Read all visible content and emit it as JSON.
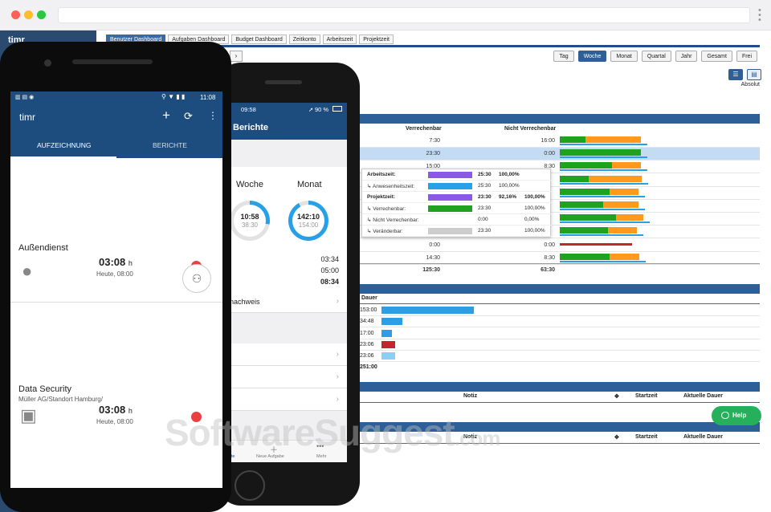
{
  "browser": {
    "url": ""
  },
  "web": {
    "logo": "timr",
    "tabs": [
      "Benutzer Dashboard",
      "Aufgaben Dashboard",
      "Budget Dashboard",
      "Zeitkonto",
      "Arbeitszeit",
      "Projektzeit"
    ],
    "nav_arrow": "›",
    "periods": [
      "Tag",
      "Woche",
      "Monat",
      "Quartal",
      "Jahr",
      "Gesamt",
      "Frei"
    ],
    "active_period": "Woche",
    "view_label": "Absolut",
    "table1": {
      "col_billable": "Verrechenbar",
      "col_nonbillable": "Nicht Verrechenbar",
      "rows": [
        {
          "billable": "7:30",
          "nonbillable": "16:00"
        },
        {
          "billable": "23:30",
          "nonbillable": "0:00"
        },
        {
          "billable": "15:00",
          "nonbillable": "8:30"
        },
        {
          "billable": "",
          "nonbillable": ""
        },
        {
          "billable": "",
          "nonbillable": ""
        },
        {
          "billable": "",
          "nonbillable": ""
        },
        {
          "billable": "",
          "nonbillable": ""
        },
        {
          "billable": "",
          "nonbillable": ""
        },
        {
          "billable": "0:00",
          "nonbillable": "0:00"
        },
        {
          "billable": "14:30",
          "nonbillable": "8:30"
        }
      ],
      "total_billable": "125:30",
      "total_nonbillable": "63:30"
    },
    "popup": [
      {
        "label": "Arbeitszeit:",
        "v1": "25:30",
        "v2": "100,00%",
        "v3": "",
        "bold": true
      },
      {
        "label": "↳ Anwesenheitszeit:",
        "v1": "25:30",
        "v2": "100,00%",
        "v3": "",
        "bold": false
      },
      {
        "label": "Projektzeit:",
        "v1": "23:30",
        "v2": "92,16%",
        "v3": "100,00%",
        "bold": true
      },
      {
        "label": "↳ Verrechenbar:",
        "v1": "23:30",
        "v2": "",
        "v3": "100,00%",
        "bold": false
      },
      {
        "label": "↳ Nicht Verrechenbar:",
        "v1": "0:00",
        "v2": "",
        "v3": "0,00%",
        "bold": false
      },
      {
        "label": "↳ Veränderbar:",
        "v1": "23:30",
        "v2": "",
        "v3": "100,00%",
        "bold": false
      }
    ],
    "table2": {
      "col_duration": "Dauer",
      "rows": [
        {
          "value": "153:00",
          "fraction": 1.0,
          "color": "#2a9fe6"
        },
        {
          "value": "34:48",
          "fraction": 0.23,
          "color": "#2a9fe6"
        },
        {
          "value": "17:00",
          "fraction": 0.11,
          "color": "#2a9fe6"
        },
        {
          "value": "23:06",
          "fraction": 0.15,
          "color": "#c0282d"
        },
        {
          "value": "23:06",
          "fraction": 0.15,
          "color": "#8ccff5"
        }
      ],
      "total": "251:00"
    },
    "table3": {
      "col_note": "Notiz",
      "col_start": "Startzeit",
      "col_duration": "Aktuelle Dauer"
    },
    "table4": {
      "col_note": "Notiz",
      "col_start": "Startzeit",
      "col_duration": "Aktuelle Dauer"
    },
    "help_label": "Help",
    "watermark": "SoftwareSuggest",
    "watermark_tld": ".com"
  },
  "iphone": {
    "time": "09:58",
    "battery": "90 %",
    "title": "Berichte",
    "week_label": "Woche",
    "month_label": "Monat",
    "week_value": "10:58",
    "week_target": "38:30",
    "week_progress": 0.28,
    "month_value": "142:10",
    "month_target": "154:00",
    "month_progress": 0.92,
    "summary": [
      "03:34",
      "05:00",
      "08:34"
    ],
    "list_item": "nachweis",
    "bottom_tabs": [
      "rte",
      "Neue Aufgabe",
      "Mehr"
    ]
  },
  "android": {
    "time": "11:08",
    "app_title": "timr",
    "tab_record": "AUFZEICHNUNG",
    "tab_reports": "BERICHTE",
    "entries": [
      {
        "name": "Außendienst",
        "sub": "",
        "time": "03:08",
        "unit": "h",
        "date": "Heute, 08:00"
      },
      {
        "name": "Data Security",
        "sub": "Müller AG/Standort Hamburg/",
        "time": "03:08",
        "unit": "h",
        "date": "Heute, 08:00"
      }
    ]
  },
  "colors": {
    "brand": "#1d4d7e",
    "green": "#1fa21f",
    "orange": "#ff9a1f",
    "blue": "#28a0e8",
    "red": "#e94040",
    "help": "#26b05b"
  }
}
